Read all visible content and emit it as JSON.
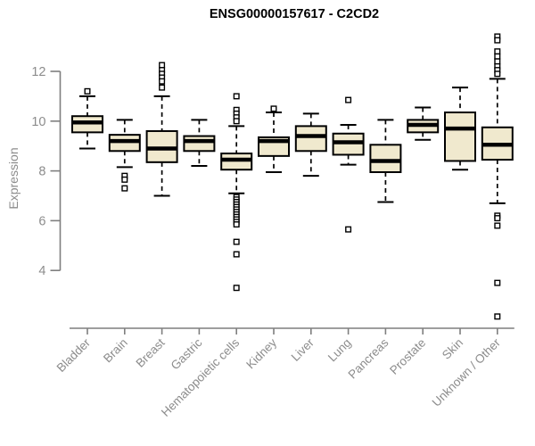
{
  "page": {
    "background": "#ffffff"
  },
  "chart_data": {
    "type": "boxplot",
    "title": "ENSG00000157617 - C2CD2",
    "xlabel": "",
    "ylabel": "Expression",
    "yticks": [
      4,
      6,
      8,
      10,
      12
    ],
    "ylim": [
      2,
      13.5
    ],
    "grid": false,
    "legend": "none",
    "colors": {
      "box_fill": "#f0e9ce",
      "box_stroke": "#000000",
      "median": "#000000",
      "whisker": "#000000",
      "outlier_stroke": "#000000",
      "outlier_fill": "#ffffff",
      "axis": "#7f7f7f",
      "tick_label": "#8c8c8c",
      "title": "#000000"
    },
    "categories": [
      "Bladder",
      "Brain",
      "Breast",
      "Gastric",
      "Hematopoietic cells",
      "Kidney",
      "Liver",
      "Lung",
      "Pancreas",
      "Prostate",
      "Skin",
      "Unknown / Other"
    ],
    "series": [
      {
        "name": "Bladder",
        "low": 8.9,
        "q1": 9.55,
        "median": 9.95,
        "q3": 10.2,
        "high": 11.0,
        "outliers": [
          11.2
        ]
      },
      {
        "name": "Brain",
        "low": 8.15,
        "q1": 8.8,
        "median": 9.2,
        "q3": 9.45,
        "high": 10.05,
        "outliers": [
          7.8,
          7.65,
          7.3
        ]
      },
      {
        "name": "Breast",
        "low": 7.0,
        "q1": 8.35,
        "median": 8.9,
        "q3": 9.6,
        "high": 11.0,
        "outliers": [
          12.25,
          12.05,
          11.9,
          11.75,
          11.6,
          11.35
        ]
      },
      {
        "name": "Gastric",
        "low": 8.2,
        "q1": 8.8,
        "median": 9.2,
        "q3": 9.4,
        "high": 10.05,
        "outliers": []
      },
      {
        "name": "Hematopoietic cells",
        "low": 7.1,
        "q1": 8.05,
        "median": 8.45,
        "q3": 8.7,
        "high": 9.8,
        "outliers": [
          11.0,
          10.45,
          10.3,
          10.15,
          10.0,
          6.95,
          6.85,
          6.75,
          6.65,
          6.55,
          6.45,
          6.35,
          6.25,
          6.15,
          6.05,
          5.95,
          5.85,
          5.15,
          4.65,
          3.3
        ]
      },
      {
        "name": "Kidney",
        "low": 7.95,
        "q1": 8.6,
        "median": 9.2,
        "q3": 9.35,
        "high": 10.35,
        "outliers": [
          10.5
        ]
      },
      {
        "name": "Liver",
        "low": 7.8,
        "q1": 8.8,
        "median": 9.4,
        "q3": 9.8,
        "high": 10.3,
        "outliers": []
      },
      {
        "name": "Lung",
        "low": 8.25,
        "q1": 8.65,
        "median": 9.15,
        "q3": 9.5,
        "high": 9.85,
        "outliers": [
          10.85,
          5.65
        ]
      },
      {
        "name": "Pancreas",
        "low": 6.75,
        "q1": 7.95,
        "median": 8.4,
        "q3": 9.05,
        "high": 10.05,
        "outliers": []
      },
      {
        "name": "Prostate",
        "low": 9.25,
        "q1": 9.55,
        "median": 9.85,
        "q3": 10.05,
        "high": 10.55,
        "outliers": []
      },
      {
        "name": "Skin",
        "low": 8.05,
        "q1": 8.4,
        "median": 9.7,
        "q3": 10.35,
        "high": 11.35,
        "outliers": []
      },
      {
        "name": "Unknown / Other",
        "low": 6.7,
        "q1": 8.45,
        "median": 9.05,
        "q3": 9.75,
        "high": 11.7,
        "outliers": [
          13.4,
          13.25,
          12.8,
          12.6,
          12.4,
          12.2,
          12.05,
          11.9,
          6.2,
          6.1,
          5.8,
          3.5,
          2.15
        ]
      }
    ]
  }
}
